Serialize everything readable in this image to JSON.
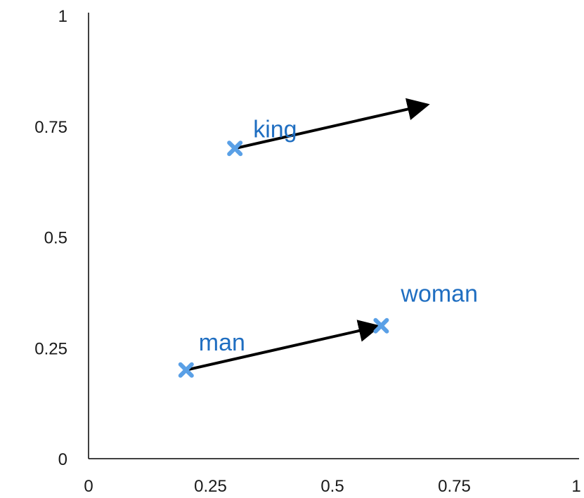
{
  "chart_data": {
    "type": "scatter",
    "title": "",
    "xlabel": "",
    "ylabel": "",
    "xlim": [
      0,
      1
    ],
    "ylim": [
      0,
      1
    ],
    "grid": false,
    "x_ticks": [
      0,
      0.25,
      0.5,
      0.75,
      1
    ],
    "y_ticks": [
      0,
      0.25,
      0.5,
      0.75,
      1
    ],
    "x_tick_labels": [
      "0",
      "0.25",
      "0.5",
      "0.75",
      "1"
    ],
    "y_tick_labels": [
      "0",
      "0.25",
      "0.5",
      "0.75",
      "1"
    ],
    "points": [
      {
        "label": "king",
        "x": 0.3,
        "y": 0.7
      },
      {
        "label": "man",
        "x": 0.2,
        "y": 0.2
      },
      {
        "label": "woman",
        "x": 0.6,
        "y": 0.3
      }
    ],
    "arrows": [
      {
        "from": [
          0.3,
          0.7
        ],
        "to": [
          0.7,
          0.8
        ]
      },
      {
        "from": [
          0.2,
          0.2
        ],
        "to": [
          0.6,
          0.3
        ]
      }
    ],
    "colors": {
      "marker": "#5aa0e6",
      "label": "#1f6ec1",
      "arrow": "#000000",
      "axis": "#000000"
    }
  }
}
